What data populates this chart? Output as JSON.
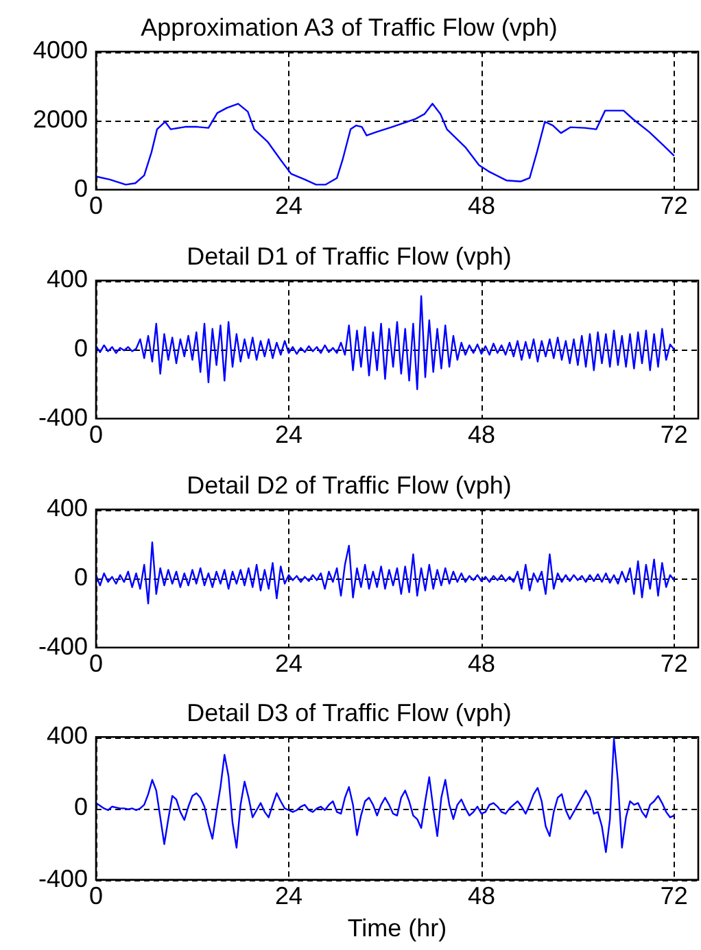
{
  "chart_data": [
    {
      "type": "line",
      "title": "Approximation A3 of Traffic Flow (vph)",
      "xlim": [
        0,
        75
      ],
      "xticks": [
        0,
        24,
        48,
        72
      ],
      "ylim": [
        0,
        4000
      ],
      "yticks": [
        0,
        2000,
        4000
      ],
      "grid": true,
      "x": [
        0,
        1.7,
        3.7,
        4.9,
        6.0,
        6.9,
        7.6,
        8.6,
        9.3,
        11.1,
        12.6,
        14.0,
        15.1,
        16.3,
        17.7,
        18.9,
        19.7,
        21.4,
        23.1,
        24.3,
        26.0,
        27.4,
        28.6,
        30.0,
        30.7,
        31.7,
        32.4,
        33.1,
        33.7,
        34.9,
        36.9,
        39.7,
        40.9,
        41.9,
        42.9,
        43.7,
        46.0,
        47.7,
        48.9,
        51.1,
        52.9,
        54.0,
        54.9,
        55.9,
        56.9,
        57.9,
        59.1,
        60.9,
        62.3,
        63.4,
        65.7,
        66.9,
        68.9,
        70.6,
        72.0
      ],
      "series": [
        {
          "color": "#0000ff",
          "values": [
            385,
            296,
            148,
            190,
            414,
            1080,
            1750,
            1970,
            1750,
            1820,
            1820,
            1790,
            2220,
            2370,
            2490,
            2260,
            1750,
            1380,
            830,
            460,
            296,
            148,
            148,
            340,
            860,
            1750,
            1860,
            1820,
            1570,
            1670,
            1820,
            2040,
            2190,
            2490,
            2190,
            1750,
            1230,
            710,
            530,
            270,
            240,
            340,
            1080,
            1970,
            1860,
            1640,
            1810,
            1790,
            1750,
            2290,
            2290,
            2040,
            1670,
            1300,
            980
          ]
        }
      ]
    },
    {
      "type": "line",
      "title": "Detail D1 of Traffic Flow (vph)",
      "xlim": [
        0,
        75
      ],
      "xticks": [
        0,
        24,
        48,
        72
      ],
      "ylim": [
        -400,
        400
      ],
      "yticks": [
        -400,
        0,
        400
      ],
      "grid": true,
      "x": [
        0,
        0.5,
        1,
        1.5,
        2,
        2.5,
        3,
        3.5,
        4,
        4.5,
        5,
        5.5,
        6,
        6.5,
        7,
        7.5,
        8,
        8.5,
        9,
        9.5,
        10,
        10.5,
        11,
        11.5,
        12,
        12.5,
        13,
        13.5,
        14,
        14.5,
        15,
        15.5,
        16,
        16.5,
        17,
        17.5,
        18,
        18.5,
        19,
        19.5,
        20,
        20.5,
        21,
        21.5,
        22,
        22.5,
        23,
        23.5,
        24,
        24.5,
        25,
        25.5,
        26,
        26.5,
        27,
        27.5,
        28,
        28.5,
        29,
        29.5,
        30,
        30.5,
        31,
        31.5,
        32,
        32.5,
        33,
        33.5,
        34,
        34.5,
        35,
        35.5,
        36,
        36.5,
        37,
        37.5,
        38,
        38.5,
        39,
        39.5,
        40,
        40.5,
        41,
        41.5,
        42,
        42.5,
        43,
        43.5,
        44,
        44.5,
        45,
        45.5,
        46,
        46.5,
        47,
        47.5,
        48,
        48.5,
        49,
        49.5,
        50,
        50.5,
        51,
        51.5,
        52,
        52.5,
        53,
        53.5,
        54,
        54.5,
        55,
        55.5,
        56,
        56.5,
        57,
        57.5,
        58,
        58.5,
        59,
        59.5,
        60,
        60.5,
        61,
        61.5,
        62,
        62.5,
        63,
        63.5,
        64,
        64.5,
        65,
        65.5,
        66,
        66.5,
        67,
        67.5,
        68,
        68.5,
        69,
        69.5,
        70,
        70.5,
        71,
        71.5,
        72
      ],
      "series": [
        {
          "color": "#0000ff",
          "values": [
            20,
            -15,
            25,
            -10,
            15,
            -20,
            10,
            -5,
            15,
            -10,
            5,
            60,
            -50,
            80,
            -70,
            150,
            -140,
            90,
            -60,
            70,
            -80,
            60,
            -40,
            80,
            -60,
            100,
            -130,
            150,
            -190,
            120,
            -90,
            140,
            -180,
            160,
            -100,
            90,
            -70,
            60,
            -50,
            70,
            -60,
            50,
            -40,
            60,
            -50,
            40,
            -30,
            50,
            -20,
            15,
            -25,
            10,
            -15,
            20,
            -10,
            15,
            -20,
            25,
            -15,
            10,
            -20,
            40,
            -30,
            140,
            -120,
            110,
            -100,
            130,
            -150,
            100,
            -120,
            150,
            -170,
            120,
            -100,
            160,
            -140,
            120,
            -180,
            150,
            -230,
            310,
            -160,
            170,
            -130,
            120,
            -110,
            140,
            -100,
            80,
            -60,
            40,
            -30,
            25,
            -20,
            30,
            -25,
            20,
            -30,
            35,
            -20,
            25,
            -30,
            40,
            -40,
            50,
            -60,
            45,
            -50,
            60,
            -70,
            50,
            -40,
            60,
            -50,
            70,
            -60,
            50,
            -80,
            60,
            -90,
            80,
            -100,
            90,
            -120,
            100,
            -80,
            90,
            -100,
            110,
            -90,
            80,
            -100,
            90,
            -110,
            100,
            -80,
            110,
            -120,
            90,
            -100,
            120,
            -60,
            30,
            0
          ]
        }
      ]
    },
    {
      "type": "line",
      "title": "Detail D2 of Traffic Flow (vph)",
      "xlim": [
        0,
        75
      ],
      "xticks": [
        0,
        24,
        48,
        72
      ],
      "ylim": [
        -400,
        400
      ],
      "yticks": [
        -400,
        0,
        400
      ],
      "grid": true,
      "x": [
        0,
        0.5,
        1,
        1.5,
        2,
        2.5,
        3,
        3.5,
        4,
        4.5,
        5,
        5.5,
        6,
        6.5,
        7,
        7.5,
        8,
        8.5,
        9,
        9.5,
        10,
        10.5,
        11,
        11.5,
        12,
        12.5,
        13,
        13.5,
        14,
        14.5,
        15,
        15.5,
        16,
        16.5,
        17,
        17.5,
        18,
        18.5,
        19,
        19.5,
        20,
        20.5,
        21,
        21.5,
        22,
        22.5,
        23,
        23.5,
        24,
        24.5,
        25,
        25.5,
        26,
        26.5,
        27,
        27.5,
        28,
        28.5,
        29,
        29.5,
        30,
        30.5,
        31,
        31.5,
        32,
        32.5,
        33,
        33.5,
        34,
        34.5,
        35,
        35.5,
        36,
        36.5,
        37,
        37.5,
        38,
        38.5,
        39,
        39.5,
        40,
        40.5,
        41,
        41.5,
        42,
        42.5,
        43,
        43.5,
        44,
        44.5,
        45,
        45.5,
        46,
        46.5,
        47,
        47.5,
        48,
        48.5,
        49,
        49.5,
        50,
        50.5,
        51,
        51.5,
        52,
        52.5,
        53,
        53.5,
        54,
        54.5,
        55,
        55.5,
        56,
        56.5,
        57,
        57.5,
        58,
        58.5,
        59,
        59.5,
        60,
        60.5,
        61,
        61.5,
        62,
        62.5,
        63,
        63.5,
        64,
        64.5,
        65,
        65.5,
        66,
        66.5,
        67,
        67.5,
        68,
        68.5,
        69,
        69.5,
        70,
        70.5,
        71,
        71.5,
        72
      ],
      "series": [
        {
          "color": "#0000ff",
          "values": [
            20,
            -40,
            30,
            -20,
            10,
            -30,
            20,
            -20,
            40,
            -50,
            30,
            -60,
            80,
            -145,
            210,
            -90,
            60,
            -40,
            50,
            -30,
            40,
            -50,
            30,
            -40,
            50,
            -30,
            60,
            -40,
            30,
            -50,
            40,
            -30,
            50,
            -60,
            40,
            -30,
            50,
            -40,
            60,
            -50,
            80,
            -70,
            50,
            -60,
            90,
            -115,
            70,
            -30,
            20,
            -10,
            15,
            -20,
            10,
            -15,
            20,
            -10,
            30,
            -60,
            40,
            -20,
            60,
            -100,
            80,
            190,
            -110,
            60,
            -50,
            80,
            -60,
            40,
            -50,
            70,
            -60,
            50,
            -40,
            60,
            -90,
            70,
            -80,
            140,
            -100,
            60,
            -70,
            80,
            -60,
            50,
            -40,
            60,
            -30,
            40,
            -20,
            30,
            -20,
            15,
            -10,
            20,
            -15,
            10,
            -20,
            15,
            -10,
            20,
            -15,
            10,
            -20,
            40,
            -60,
            80,
            -70,
            30,
            -20,
            40,
            -90,
            140,
            -60,
            30,
            -20,
            20,
            -15,
            20,
            -10,
            15,
            -20,
            20,
            -15,
            25,
            -20,
            30,
            -25,
            20,
            -30,
            40,
            -20,
            60,
            -90,
            100,
            -110,
            80,
            -60,
            110,
            -100,
            90,
            -50,
            20,
            -10
          ]
        }
      ]
    },
    {
      "type": "line",
      "title": "Detail D3 of Traffic Flow (vph)",
      "xlabel": "Time (hr)",
      "xlim": [
        0,
        75
      ],
      "xticks": [
        0,
        24,
        48,
        72
      ],
      "ylim": [
        -400,
        400
      ],
      "yticks": [
        -400,
        0,
        400
      ],
      "grid": true,
      "x": [
        0,
        0.5,
        1,
        1.5,
        2,
        2.5,
        3,
        3.5,
        4,
        4.5,
        5,
        5.5,
        6,
        6.5,
        7,
        7.5,
        8,
        8.5,
        9,
        9.5,
        10,
        10.5,
        11,
        11.5,
        12,
        12.5,
        13,
        13.5,
        14,
        14.5,
        15,
        15.5,
        16,
        16.5,
        17,
        17.5,
        18,
        18.5,
        19,
        19.5,
        20,
        20.5,
        21,
        21.5,
        22,
        22.5,
        23,
        23.5,
        24,
        24.5,
        25,
        25.5,
        26,
        26.5,
        27,
        27.5,
        28,
        28.5,
        29,
        29.5,
        30,
        30.5,
        31,
        31.5,
        32,
        32.5,
        33,
        33.5,
        34,
        34.5,
        35,
        35.5,
        36,
        36.5,
        37,
        37.5,
        38,
        38.5,
        39,
        39.5,
        40,
        40.5,
        41,
        41.5,
        42,
        42.5,
        43,
        43.5,
        44,
        44.5,
        45,
        45.5,
        46,
        46.5,
        47,
        47.5,
        48,
        48.5,
        49,
        49.5,
        50,
        50.5,
        51,
        51.5,
        52,
        52.5,
        53,
        53.5,
        54,
        54.5,
        55,
        55.5,
        56,
        56.5,
        57,
        57.5,
        58,
        58.5,
        59,
        59.5,
        60,
        60.5,
        61,
        61.5,
        62,
        62.5,
        63,
        63.5,
        64,
        64.5,
        65,
        65.5,
        66,
        66.5,
        67,
        67.5,
        68,
        68.5,
        69,
        69.5,
        70,
        70.5,
        71,
        71.5,
        72
      ],
      "series": [
        {
          "color": "#0000ff",
          "values": [
            30,
            15,
            0,
            -10,
            10,
            5,
            0,
            0,
            -5,
            0,
            -10,
            0,
            20,
            80,
            160,
            100,
            -50,
            -200,
            -60,
            70,
            50,
            -20,
            -65,
            10,
            70,
            85,
            60,
            10,
            -90,
            -170,
            -20,
            120,
            300,
            180,
            -80,
            -220,
            20,
            150,
            60,
            -50,
            -10,
            30,
            -20,
            -50,
            20,
            85,
            40,
            0,
            -10,
            -20,
            -10,
            10,
            20,
            -10,
            -20,
            0,
            10,
            -10,
            20,
            40,
            -20,
            -30,
            60,
            120,
            20,
            -150,
            -40,
            40,
            60,
            20,
            -40,
            20,
            60,
            20,
            -30,
            -40,
            60,
            100,
            40,
            -40,
            -60,
            -110,
            40,
            175,
            0,
            -155,
            60,
            160,
            20,
            -60,
            20,
            50,
            0,
            -40,
            -20,
            10,
            -30,
            -20,
            20,
            30,
            10,
            -20,
            -30,
            0,
            20,
            40,
            10,
            -30,
            20,
            80,
            115,
            40,
            -100,
            -155,
            -20,
            60,
            80,
            -10,
            -60,
            -20,
            20,
            60,
            100,
            60,
            -30,
            -20,
            -100,
            -245,
            -60,
            390,
            150,
            -220,
            -50,
            40,
            20,
            30,
            -20,
            -50,
            20,
            40,
            70,
            30,
            -20,
            -50,
            -40
          ]
        }
      ]
    }
  ]
}
